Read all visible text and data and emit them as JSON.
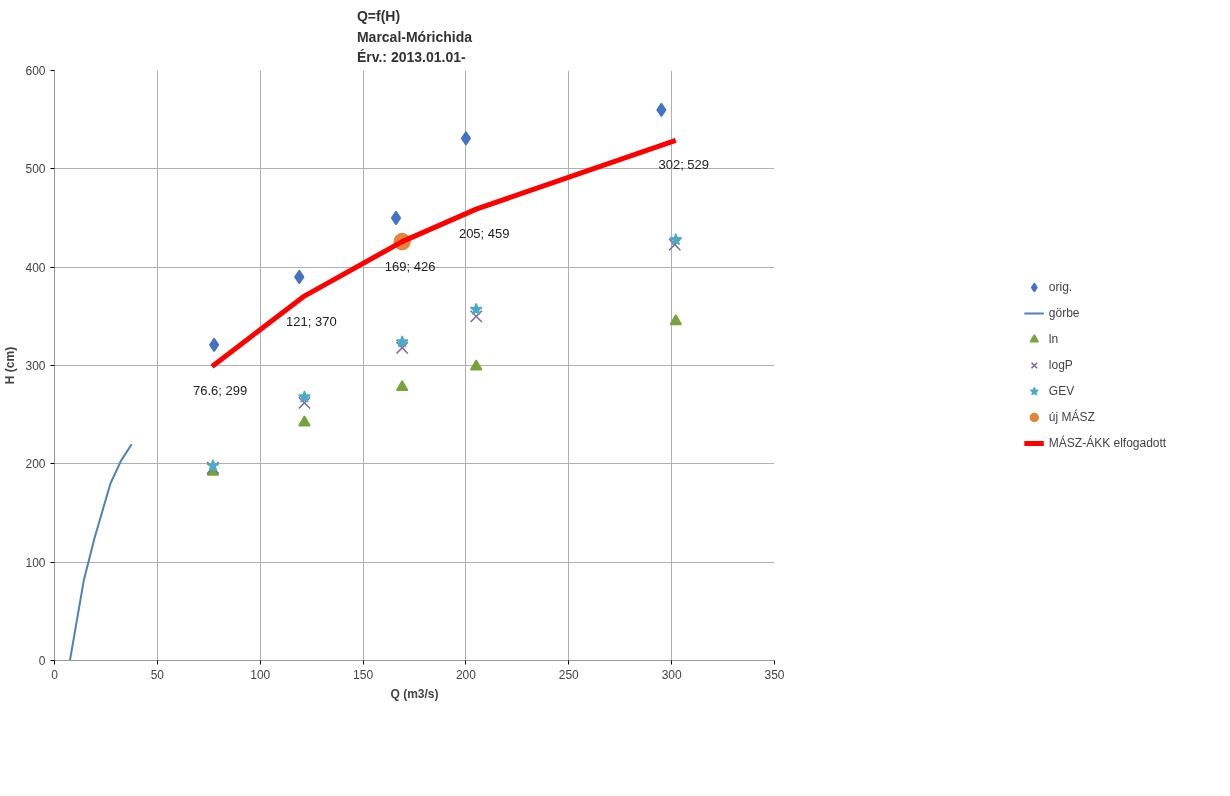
{
  "chart_data": {
    "type": "scatter",
    "title": "Q=f(H)\nMarcal-Mórichida\nÉrv.: 2013.01.01-",
    "xlabel": "Q (m3/s)",
    "ylabel": "H (cm)",
    "xlim": [
      0,
      350
    ],
    "xticks": [
      0,
      50,
      100,
      150,
      200,
      250,
      300,
      350
    ],
    "ylim": [
      0,
      600
    ],
    "yticks": [
      0,
      100,
      200,
      300,
      400,
      500,
      600
    ],
    "grid": true,
    "legend": "right",
    "series": [
      {
        "name": "orig.",
        "marker": "diamond",
        "color": "#4472c4",
        "x": [
          77.6,
          119,
          166,
          200,
          295
        ],
        "values": [
          321,
          390,
          450,
          531,
          560
        ]
      },
      {
        "name": "görbe",
        "type": "line",
        "marker": "none",
        "color": "#4f81bd",
        "x": [
          7.5,
          14.2,
          19.4,
          27.2,
          32.3,
          37.5
        ],
        "values": [
          0,
          81,
          124,
          180,
          203,
          220
        ]
      },
      {
        "name": "ln",
        "marker": "triangle",
        "color": "#77a33c",
        "x": [
          77,
          121.5,
          169,
          205,
          302
        ],
        "values": [
          192,
          242,
          278,
          299,
          345
        ]
      },
      {
        "name": "logP",
        "marker": "cross",
        "color": "#8064a2",
        "x": [
          77,
          121.5,
          169,
          205,
          301.5
        ],
        "values": [
          196,
          262,
          318,
          350,
          423
        ]
      },
      {
        "name": "GEV",
        "marker": "star",
        "color": "#4bacc6",
        "x": [
          77,
          121.5,
          169,
          205,
          302
        ],
        "values": [
          198,
          268,
          324,
          357,
          428
        ]
      },
      {
        "name": "új MÁSZ",
        "marker": "circle",
        "color": "#e0873a",
        "x": [
          169
        ],
        "values": [
          426
        ]
      },
      {
        "name": "MÁSZ-ÁKK elfogadott",
        "type": "line",
        "marker": "none",
        "color": "#ff0000",
        "x": [
          76.6,
          121,
          169,
          205,
          302
        ],
        "values": [
          299,
          370,
          426,
          459,
          529
        ],
        "value_labels": [
          "76.6; 299",
          "121; 370",
          "169; 426",
          "205; 459",
          "302; 529"
        ]
      }
    ]
  }
}
